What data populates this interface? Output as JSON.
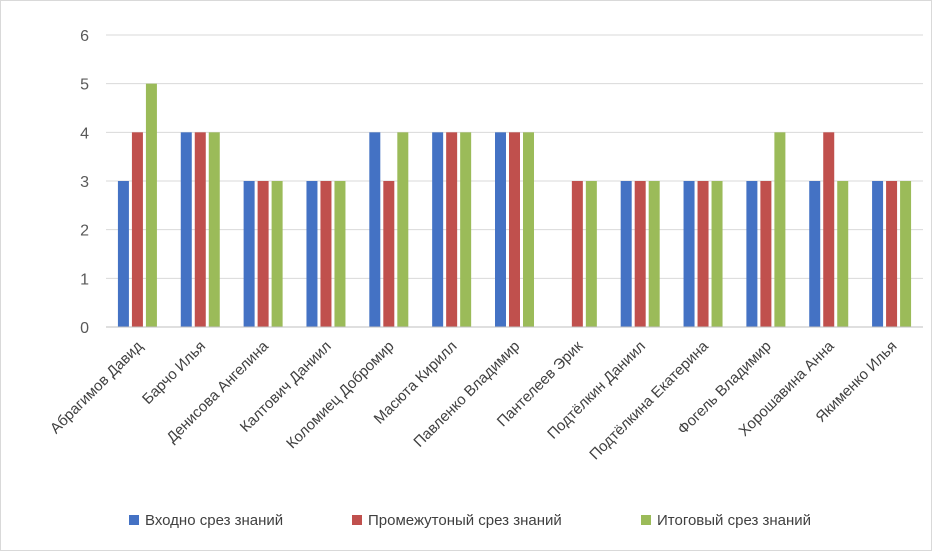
{
  "chart_data": {
    "type": "bar",
    "title": "",
    "xlabel": "",
    "ylabel": "",
    "ylim": [
      0,
      6
    ],
    "yticks": [
      0,
      1,
      2,
      3,
      4,
      5,
      6
    ],
    "grid": true,
    "legend_position": "bottom",
    "categories": [
      "Абрагимов Давид",
      "Барчо Илья",
      "Денисова Ангелина",
      "Калтович Даниил",
      "Коломиец Добромир",
      "Масюта Кирилл",
      "Павленко Владимир",
      "Пантелеев Эрик",
      "Подтёлкин Даниил",
      "Подтёлкина Екатерина",
      "Фогель Владимир",
      "Хорошавина Анна",
      "Якименко Илья"
    ],
    "series": [
      {
        "name": "Входно срез знаний",
        "color": "#4472c4",
        "values": [
          3,
          4,
          3,
          3,
          4,
          4,
          4,
          0,
          3,
          3,
          3,
          3,
          3
        ]
      },
      {
        "name": "Промежутоный срез знаний",
        "color": "#c0504d",
        "values": [
          4,
          4,
          3,
          3,
          3,
          4,
          4,
          3,
          3,
          3,
          3,
          4,
          3
        ]
      },
      {
        "name": "Итоговый срез знаний",
        "color": "#9bbb59",
        "values": [
          5,
          4,
          3,
          3,
          4,
          4,
          4,
          3,
          3,
          3,
          4,
          3,
          3
        ]
      }
    ]
  }
}
